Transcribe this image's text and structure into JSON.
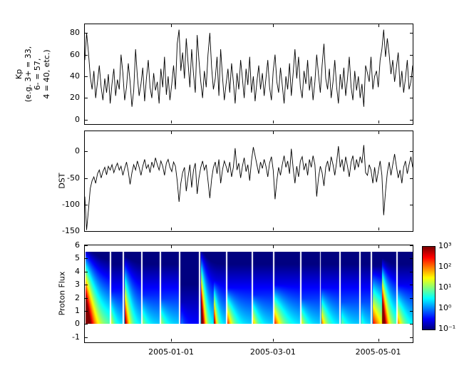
{
  "figure": {
    "bg": "#ffffff",
    "axis_color": "#000000",
    "line_color": "#000000"
  },
  "x_axis": {
    "domain_days": [
      0,
      190
    ],
    "ticks": [
      {
        "day": 50,
        "label": "2005-01-01"
      },
      {
        "day": 109,
        "label": "2005-03-01"
      },
      {
        "day": 170,
        "label": "2005-05-01"
      }
    ]
  },
  "chart_data": [
    {
      "id": "kp",
      "type": "line",
      "title": "",
      "ylabel": "Kp\n(e.g. 3+ = 33,\n6- = 57,\n4 = 40, etc.)",
      "ylim": [
        -4,
        88
      ],
      "yticks": [
        0,
        20,
        40,
        60,
        80
      ],
      "line_color": "#000000",
      "values": [
        55,
        80,
        62,
        40,
        28,
        45,
        20,
        35,
        50,
        30,
        18,
        38,
        25,
        42,
        15,
        33,
        47,
        22,
        37,
        28,
        60,
        43,
        18,
        30,
        52,
        35,
        12,
        27,
        65,
        40,
        22,
        33,
        48,
        17,
        38,
        55,
        30,
        20,
        43,
        27,
        35,
        15,
        47,
        30,
        58,
        23,
        40,
        18,
        33,
        50,
        28,
        70,
        83,
        45,
        62,
        38,
        75,
        52,
        30,
        65,
        42,
        25,
        78,
        55,
        35,
        20,
        45,
        30,
        60,
        80,
        48,
        28,
        38,
        58,
        22,
        65,
        40,
        18,
        33,
        47,
        25,
        52,
        35,
        15,
        43,
        28,
        55,
        38,
        20,
        47,
        32,
        58,
        25,
        40,
        17,
        35,
        50,
        28,
        43,
        22,
        38,
        55,
        30,
        18,
        45,
        60,
        35,
        25,
        48,
        32,
        15,
        40,
        28,
        52,
        22,
        43,
        65,
        38,
        58,
        30,
        20,
        45,
        33,
        55,
        27,
        40,
        18,
        35,
        60,
        42,
        25,
        50,
        70,
        38,
        28,
        47,
        20,
        35,
        55,
        30,
        15,
        42,
        28,
        48,
        22,
        38,
        58,
        30,
        18,
        45,
        27,
        40,
        20,
        33,
        12,
        50,
        43,
        35,
        58,
        28,
        40,
        45,
        30,
        55,
        65,
        83,
        58,
        75,
        60,
        42,
        55,
        35,
        48,
        62,
        30,
        45,
        25,
        38,
        55,
        28,
        35,
        50
      ]
    },
    {
      "id": "dst",
      "type": "line",
      "title": "",
      "ylabel": "DST",
      "ylim": [
        -150,
        38
      ],
      "yticks": [
        0,
        -50,
        -100,
        -150
      ],
      "line_color": "#000000",
      "values": [
        -85,
        -148,
        -110,
        -70,
        -55,
        -48,
        -60,
        -42,
        -35,
        -50,
        -38,
        -30,
        -44,
        -28,
        -35,
        -25,
        -40,
        -30,
        -22,
        -35,
        -28,
        -45,
        -32,
        -20,
        -38,
        -62,
        -40,
        -25,
        -35,
        -18,
        -30,
        -45,
        -28,
        -15,
        -32,
        -25,
        -40,
        -20,
        -30,
        -12,
        -25,
        -35,
        -18,
        -28,
        -45,
        -22,
        -15,
        -30,
        -38,
        -20,
        -28,
        -55,
        -95,
        -60,
        -40,
        -30,
        -75,
        -48,
        -25,
        -68,
        -35,
        -22,
        -80,
        -50,
        -30,
        -18,
        -35,
        -25,
        -55,
        -88,
        -52,
        -30,
        -20,
        -42,
        -15,
        -60,
        -35,
        -18,
        -28,
        -40,
        -20,
        -48,
        -30,
        6,
        -35,
        -22,
        -50,
        -28,
        -12,
        -38,
        -25,
        -55,
        -18,
        8,
        -8,
        -25,
        -42,
        -20,
        -32,
        -15,
        -28,
        -48,
        -22,
        -10,
        -35,
        -90,
        -55,
        -30,
        -45,
        -25,
        -8,
        -30,
        -18,
        -42,
        5,
        -32,
        -60,
        -28,
        -48,
        -18,
        -10,
        -35,
        -22,
        -45,
        -15,
        -30,
        -8,
        -25,
        -85,
        -50,
        -28,
        -40,
        -65,
        -30,
        -18,
        -38,
        -10,
        -25,
        -45,
        -20,
        10,
        -30,
        -15,
        -38,
        -10,
        -28,
        -48,
        -20,
        -8,
        -35,
        -15,
        -30,
        -10,
        -22,
        12,
        -40,
        -45,
        -25,
        -35,
        -60,
        -30,
        -58,
        -38,
        -18,
        -45,
        -120,
        -75,
        -40,
        -20,
        -45,
        -25,
        -5,
        -28,
        -50,
        -35,
        -60,
        -30,
        -18,
        -42,
        -25,
        -10,
        -30
      ]
    },
    {
      "id": "flux",
      "type": "heatmap",
      "title": "",
      "ylabel": "Proton Flux",
      "ylim": [
        -1.4,
        6
      ],
      "yticks": [
        -1,
        0,
        1,
        2,
        3,
        4,
        5,
        6
      ],
      "band_y": [
        0,
        5.5
      ],
      "value_scale": "log10(flux)",
      "color_range_exp": [
        -1,
        3
      ],
      "colormap": "jet",
      "colormap_stops": [
        "#00007f",
        "#0000ff",
        "#00ffff",
        "#00ff00",
        "#ffff00",
        "#ff0000",
        "#7f0000"
      ],
      "colorbar_ticks": [
        {
          "exp": 3,
          "label": "10³"
        },
        {
          "exp": 2,
          "label": "10²"
        },
        {
          "exp": 1,
          "label": "10¹"
        },
        {
          "exp": 0,
          "label": "10⁰"
        },
        {
          "exp": -1,
          "label": "10⁻¹"
        }
      ],
      "segments": [
        {
          "d0": 0.4,
          "d1": 14.0,
          "base_bottom": 0.6,
          "events": [
            {
              "t0": 0,
              "amp": 4.5,
              "decay": 4.5,
              "height": 1.15
            }
          ]
        },
        {
          "d0": 15.2,
          "d1": 21.4,
          "events": [
            {
              "t0": 0,
              "amp": 1.2,
              "decay": 2.5,
              "height": 0.45
            }
          ]
        },
        {
          "d0": 22.6,
          "d1": 32.1,
          "events": [
            {
              "t0": 0.5,
              "amp": 3.0,
              "decay": 3.0,
              "height": 1.0
            }
          ]
        },
        {
          "d0": 33.3,
          "d1": 42.8,
          "events": [
            {
              "t0": 0,
              "amp": 0.9,
              "decay": 3.0,
              "height": 0.4
            }
          ]
        },
        {
          "d0": 44.0,
          "d1": 54.3,
          "events": [
            {
              "t0": 0,
              "amp": 1.0,
              "decay": 3.0,
              "height": 0.35
            }
          ]
        },
        {
          "d0": 55.5,
          "d1": 65.8,
          "base_top": -1.4,
          "base_bottom": -0.5,
          "events": [
            {
              "t0": 0,
              "amp": 0.6,
              "decay": 2.0,
              "height": 0.3
            }
          ]
        },
        {
          "d0": 67.0,
          "d1": 81.4,
          "events": [
            {
              "t0": 0.3,
              "amp": 4.5,
              "decay": 2.2,
              "height": 1.1
            },
            {
              "t0": 7.5,
              "amp": 3.2,
              "decay": 1.8,
              "height": 0.6
            }
          ]
        },
        {
          "d0": 82.6,
          "d1": 96.2,
          "events": [
            {
              "t0": 0,
              "amp": 2.2,
              "decay": 3.5,
              "height": 0.5
            }
          ]
        },
        {
          "d0": 97.4,
          "d1": 108.6,
          "events": [
            {
              "t0": 0,
              "amp": 1.6,
              "decay": 3.0,
              "height": 0.4
            }
          ]
        },
        {
          "d0": 109.8,
          "d1": 124.2,
          "events": [
            {
              "t0": 0,
              "amp": 2.2,
              "decay": 5.0,
              "height": 0.55
            }
          ]
        },
        {
          "d0": 125.4,
          "d1": 135.7,
          "events": [
            {
              "t0": 0,
              "amp": 1.3,
              "decay": 3.0,
              "height": 0.35
            }
          ]
        },
        {
          "d0": 136.9,
          "d1": 147.2,
          "events": [
            {
              "t0": 0,
              "amp": 2.0,
              "decay": 3.5,
              "height": 0.5
            }
          ]
        },
        {
          "d0": 148.4,
          "d1": 158.7,
          "events": [
            {
              "t0": 0,
              "amp": 0.8,
              "decay": 3.0,
              "height": 0.3
            }
          ]
        },
        {
          "d0": 160.0,
          "d1": 165.3,
          "events": [
            {
              "t0": 0,
              "amp": 0.6,
              "decay": 2.0,
              "height": 0.3
            }
          ]
        },
        {
          "d0": 166.5,
          "d1": 180.1,
          "events": [
            {
              "t0": 0,
              "amp": 2.4,
              "decay": 8.0,
              "height": 0.8
            },
            {
              "t0": 5.5,
              "amp": 4.2,
              "decay": 2.2,
              "height": 0.95
            }
          ]
        },
        {
          "d0": 181.3,
          "d1": 190.0,
          "events": [
            {
              "t0": 0,
              "amp": 1.8,
              "decay": 4.0,
              "height": 0.55
            }
          ]
        }
      ]
    }
  ]
}
